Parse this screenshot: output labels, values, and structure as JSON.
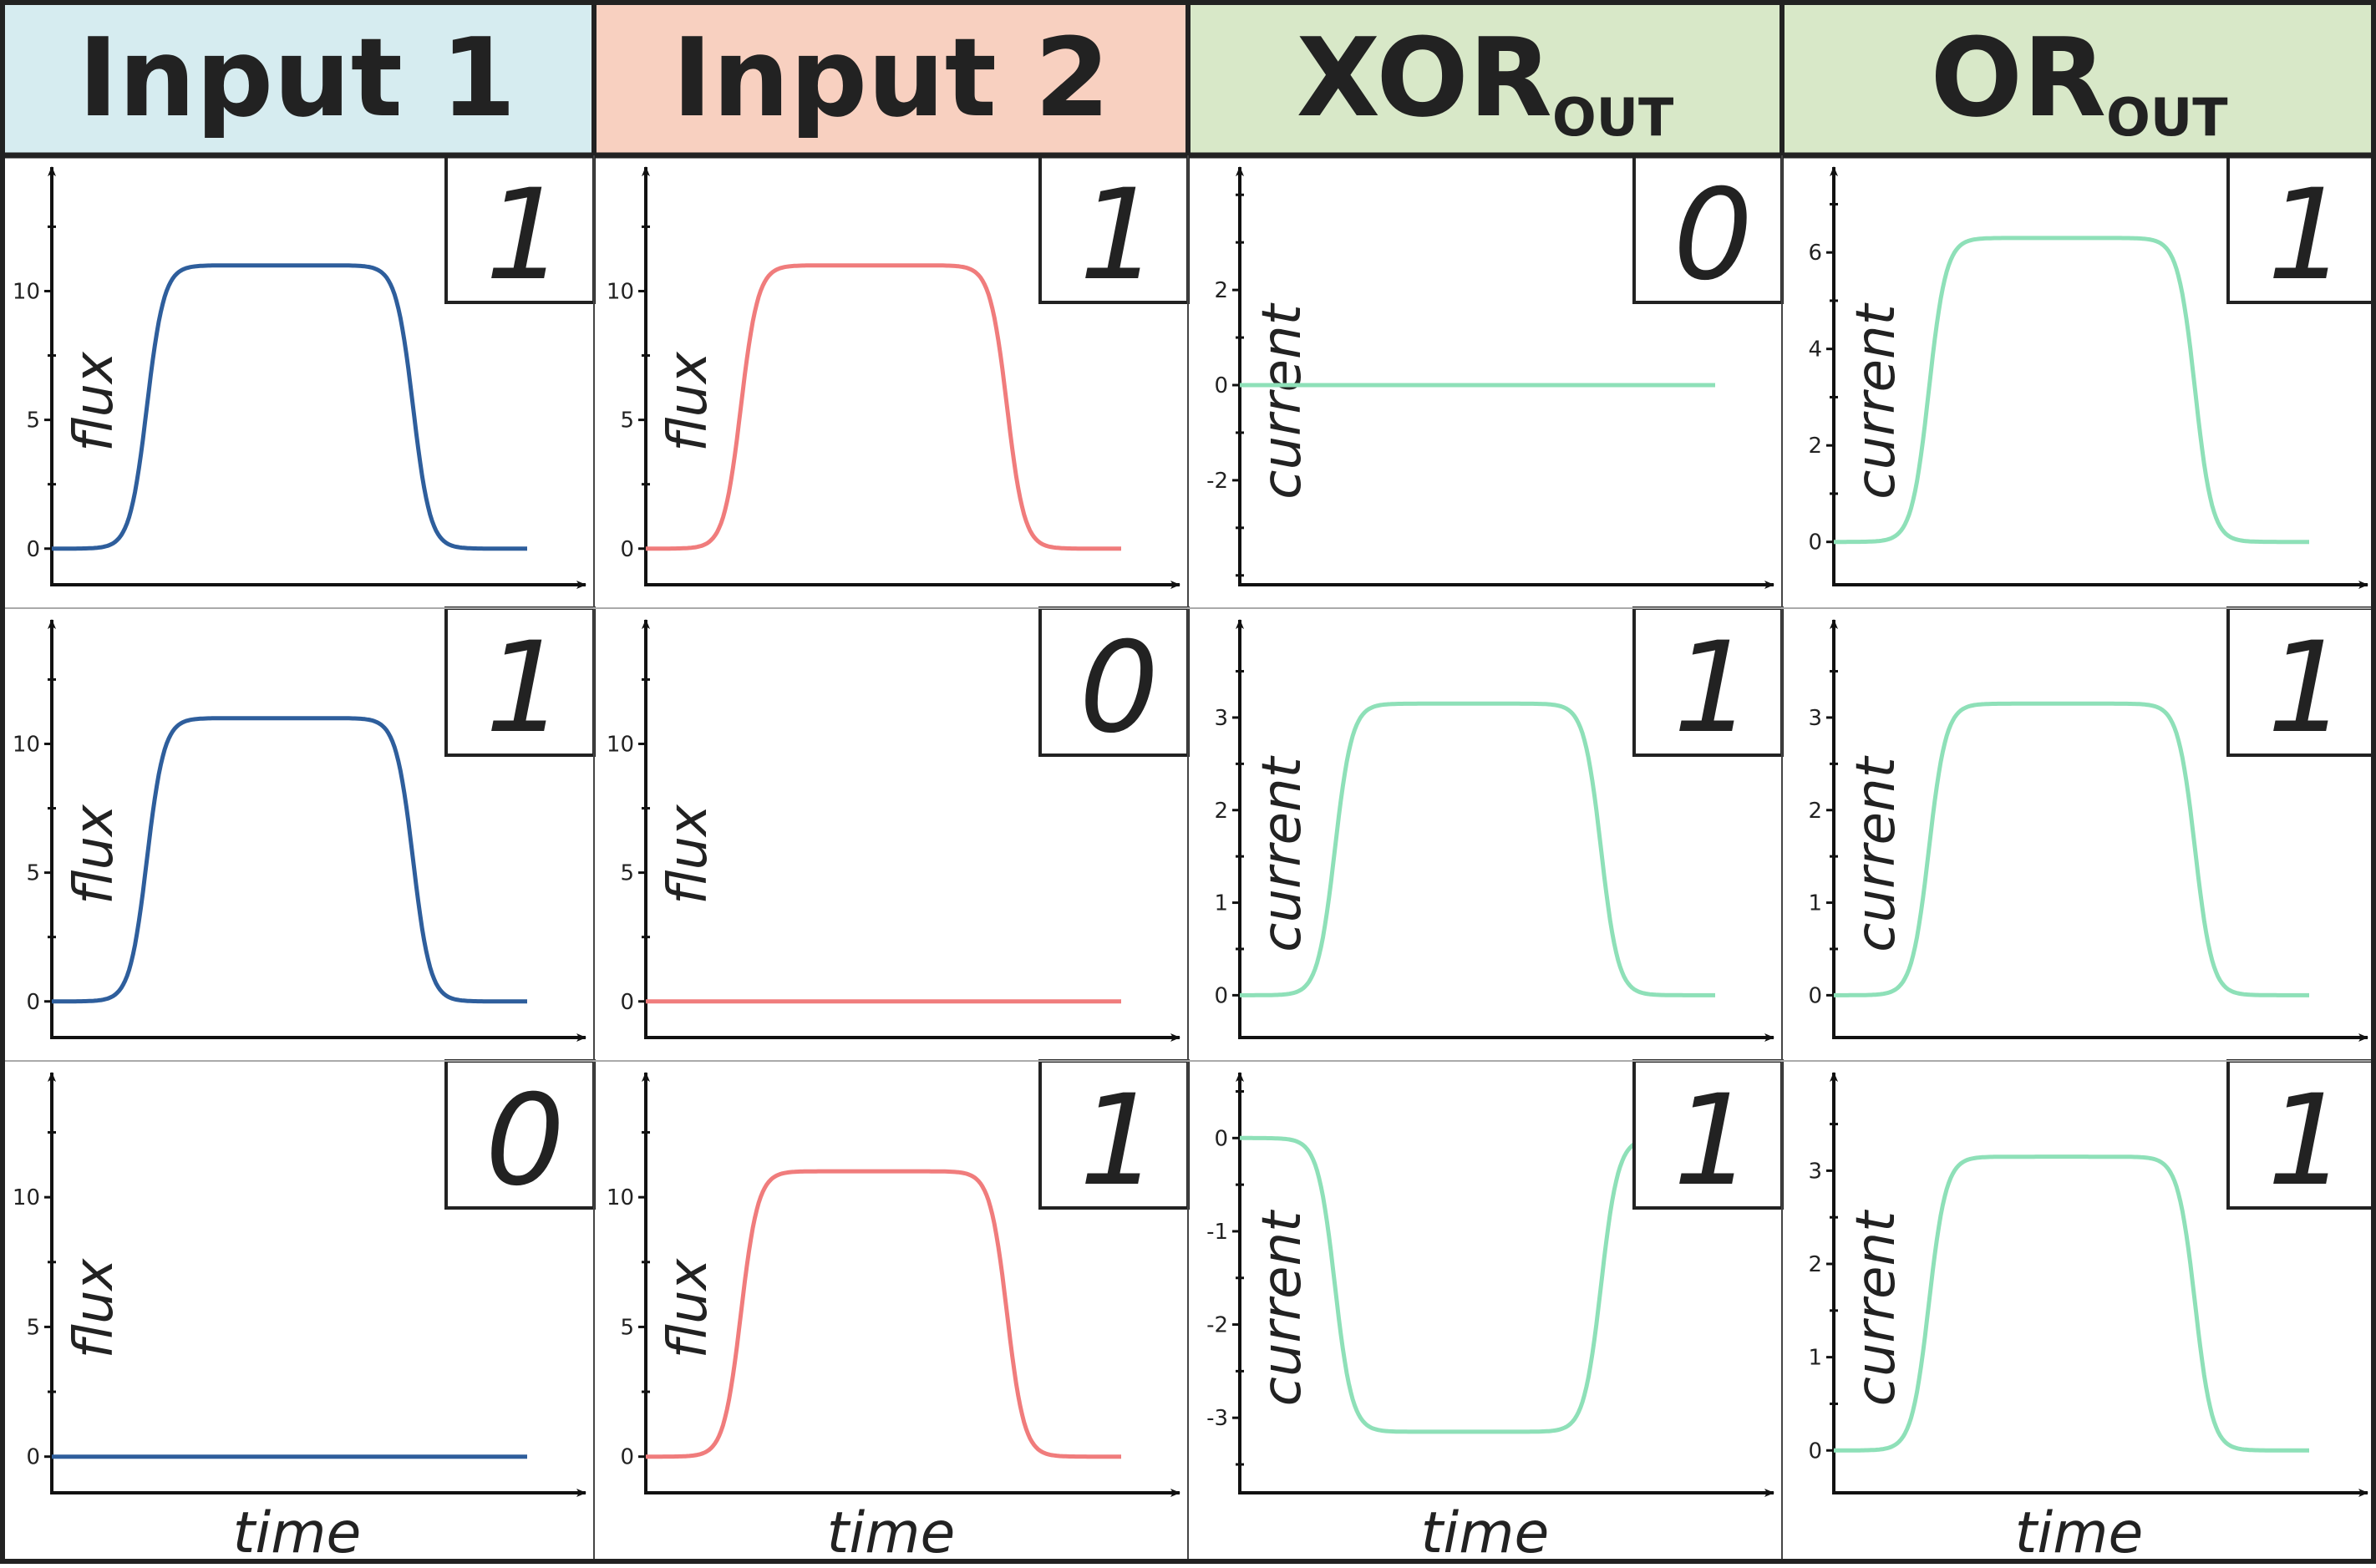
{
  "headers": [
    {
      "main": "Input 1",
      "sub": "",
      "bg": "#d6ecf0"
    },
    {
      "main": "Input 2",
      "sub": "",
      "bg": "#f8d0c0"
    },
    {
      "main": "XOR",
      "sub": "OUT",
      "bg": "#d8e8c8"
    },
    {
      "main": "OR",
      "sub": "OUT",
      "bg": "#d8e8c8"
    }
  ],
  "colors": {
    "input1": "#2e5e9c",
    "input2": "#f07c7c",
    "output": "#8ee0b8",
    "grid_line": "#222222"
  },
  "chart_data": [
    {
      "type": "line",
      "row": 0,
      "col": 0,
      "xlabel": "",
      "ylabel": "flux",
      "yticks": [
        0,
        5,
        10
      ],
      "ylim": [
        -0.3,
        13
      ],
      "color": "#2e5e9c",
      "level": 11,
      "shape": "pulse",
      "digit": "1"
    },
    {
      "type": "line",
      "row": 0,
      "col": 1,
      "xlabel": "",
      "ylabel": "flux",
      "yticks": [
        0,
        5,
        10
      ],
      "ylim": [
        -0.3,
        13
      ],
      "color": "#f07c7c",
      "level": 11,
      "shape": "pulse",
      "digit": "1"
    },
    {
      "type": "line",
      "row": 0,
      "col": 2,
      "xlabel": "",
      "ylabel": "current",
      "yticks": [
        -2,
        0,
        2
      ],
      "ylim": [
        -3.6,
        3.6
      ],
      "color": "#8ee0b8",
      "level": 0,
      "shape": "flat",
      "digit": "0"
    },
    {
      "type": "line",
      "row": 0,
      "col": 3,
      "xlabel": "",
      "ylabel": "current",
      "yticks": [
        0,
        2,
        4,
        6
      ],
      "ylim": [
        -0.3,
        6.8
      ],
      "color": "#8ee0b8",
      "level": 6.3,
      "shape": "pulse",
      "digit": "1"
    },
    {
      "type": "line",
      "row": 1,
      "col": 0,
      "xlabel": "",
      "ylabel": "flux",
      "yticks": [
        0,
        5,
        10
      ],
      "ylim": [
        -0.3,
        13
      ],
      "color": "#2e5e9c",
      "level": 11,
      "shape": "pulse",
      "digit": "1"
    },
    {
      "type": "line",
      "row": 1,
      "col": 1,
      "xlabel": "",
      "ylabel": "flux",
      "yticks": [
        0,
        5,
        10
      ],
      "ylim": [
        -0.3,
        13
      ],
      "color": "#f07c7c",
      "level": 0,
      "shape": "flat",
      "digit": "0"
    },
    {
      "type": "line",
      "row": 1,
      "col": 2,
      "xlabel": "",
      "ylabel": "current",
      "yticks": [
        0,
        1,
        2,
        3
      ],
      "ylim": [
        -0.15,
        3.55
      ],
      "color": "#8ee0b8",
      "level": 3.15,
      "shape": "pulse",
      "digit": "1"
    },
    {
      "type": "line",
      "row": 1,
      "col": 3,
      "xlabel": "",
      "ylabel": "current",
      "yticks": [
        0,
        1,
        2,
        3
      ],
      "ylim": [
        -0.15,
        3.55
      ],
      "color": "#8ee0b8",
      "level": 3.15,
      "shape": "pulse",
      "digit": "1"
    },
    {
      "type": "line",
      "row": 2,
      "col": 0,
      "xlabel": "time",
      "ylabel": "flux",
      "yticks": [
        0,
        5,
        10
      ],
      "ylim": [
        -0.3,
        13
      ],
      "color": "#2e5e9c",
      "level": 0,
      "shape": "flat",
      "digit": "0"
    },
    {
      "type": "line",
      "row": 2,
      "col": 1,
      "xlabel": "time",
      "ylabel": "flux",
      "yticks": [
        0,
        5,
        10
      ],
      "ylim": [
        -0.3,
        13
      ],
      "color": "#f07c7c",
      "level": 11,
      "shape": "pulse",
      "digit": "1"
    },
    {
      "type": "line",
      "row": 2,
      "col": 2,
      "xlabel": "time",
      "ylabel": "current",
      "yticks": [
        -3,
        -2,
        -1,
        0
      ],
      "ylim": [
        -3.5,
        0.2
      ],
      "color": "#8ee0b8",
      "level": -3.15,
      "shape": "pulse",
      "digit": "1"
    },
    {
      "type": "line",
      "row": 2,
      "col": 3,
      "xlabel": "time",
      "ylabel": "current",
      "yticks": [
        0,
        1,
        2,
        3
      ],
      "ylim": [
        -0.15,
        3.55
      ],
      "color": "#8ee0b8",
      "level": 3.15,
      "shape": "pulse",
      "digit": "1"
    }
  ]
}
